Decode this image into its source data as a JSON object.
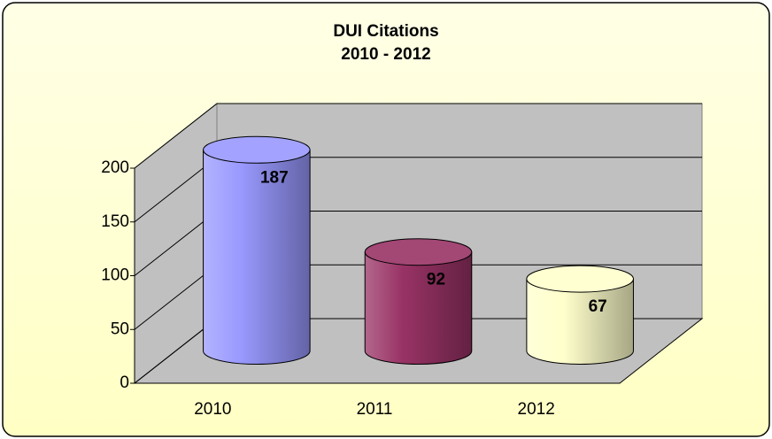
{
  "chart_data": {
    "type": "bar3d",
    "title": "DUI Citations",
    "subtitle": "2010 - 2012",
    "categories": [
      "2010",
      "2011",
      "2012"
    ],
    "values": [
      187,
      92,
      67
    ],
    "colors": [
      "#9999ff",
      "#993366",
      "#ffffcc"
    ],
    "ylim": [
      0,
      200
    ],
    "yticks": [
      0,
      50,
      100,
      150,
      200
    ],
    "grid": true
  }
}
